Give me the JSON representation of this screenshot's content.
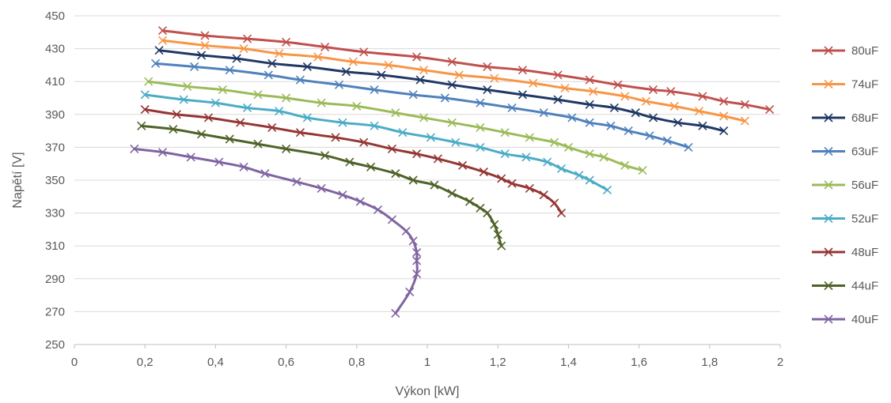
{
  "chart_data": {
    "type": "scatter",
    "title": "",
    "xlabel": "Výkon [kW]",
    "ylabel": "Napětí [V]",
    "xlim": [
      0,
      2
    ],
    "ylim": [
      250,
      450
    ],
    "x_ticks": [
      0,
      0.2,
      0.4,
      0.6,
      0.8,
      1,
      1.2,
      1.4,
      1.6,
      1.8,
      2
    ],
    "y_ticks": [
      250,
      270,
      290,
      310,
      330,
      350,
      370,
      390,
      410,
      430,
      450
    ],
    "x_tick_labels": [
      "0",
      "0,2",
      "0,4",
      "0,6",
      "0,8",
      "1",
      "1,2",
      "1,4",
      "1,6",
      "1,8",
      "2"
    ],
    "y_tick_labels": [
      "250",
      "270",
      "290",
      "310",
      "330",
      "350",
      "370",
      "390",
      "410",
      "430",
      "450"
    ],
    "grid": "horizontal",
    "legend_position": "right",
    "marker": "x",
    "series": [
      {
        "name": "80uF",
        "color": "#C0504D",
        "points": [
          [
            0.25,
            441
          ],
          [
            0.37,
            438
          ],
          [
            0.49,
            436
          ],
          [
            0.6,
            434
          ],
          [
            0.71,
            431
          ],
          [
            0.82,
            428
          ],
          [
            0.97,
            425
          ],
          [
            1.07,
            422
          ],
          [
            1.17,
            419
          ],
          [
            1.27,
            417
          ],
          [
            1.37,
            414
          ],
          [
            1.46,
            411
          ],
          [
            1.54,
            408
          ],
          [
            1.64,
            405
          ],
          [
            1.69,
            404
          ],
          [
            1.78,
            401
          ],
          [
            1.84,
            398
          ],
          [
            1.9,
            396
          ],
          [
            1.97,
            393
          ]
        ]
      },
      {
        "name": "74uF",
        "color": "#F79646",
        "points": [
          [
            0.25,
            435
          ],
          [
            0.37,
            432
          ],
          [
            0.48,
            430
          ],
          [
            0.58,
            427
          ],
          [
            0.69,
            425
          ],
          [
            0.79,
            422
          ],
          [
            0.89,
            420
          ],
          [
            0.99,
            417
          ],
          [
            1.09,
            414
          ],
          [
            1.19,
            412
          ],
          [
            1.3,
            409
          ],
          [
            1.39,
            406
          ],
          [
            1.47,
            404
          ],
          [
            1.56,
            401
          ],
          [
            1.62,
            398
          ],
          [
            1.7,
            395
          ],
          [
            1.77,
            392
          ],
          [
            1.84,
            389
          ],
          [
            1.9,
            386
          ]
        ]
      },
      {
        "name": "68uF",
        "color": "#1F3864",
        "points": [
          [
            0.24,
            429
          ],
          [
            0.36,
            426
          ],
          [
            0.46,
            424
          ],
          [
            0.56,
            421
          ],
          [
            0.66,
            419
          ],
          [
            0.77,
            416
          ],
          [
            0.87,
            414
          ],
          [
            0.98,
            411
          ],
          [
            1.07,
            408
          ],
          [
            1.17,
            405
          ],
          [
            1.27,
            402
          ],
          [
            1.37,
            399
          ],
          [
            1.46,
            396
          ],
          [
            1.53,
            394
          ],
          [
            1.59,
            391
          ],
          [
            1.64,
            388
          ],
          [
            1.71,
            385
          ],
          [
            1.78,
            383
          ],
          [
            1.84,
            380
          ]
        ]
      },
      {
        "name": "63uF",
        "color": "#4F81BD",
        "points": [
          [
            0.23,
            421
          ],
          [
            0.34,
            419
          ],
          [
            0.44,
            417
          ],
          [
            0.55,
            414
          ],
          [
            0.64,
            411
          ],
          [
            0.75,
            408
          ],
          [
            0.85,
            405
          ],
          [
            0.96,
            402
          ],
          [
            1.05,
            400
          ],
          [
            1.15,
            397
          ],
          [
            1.24,
            394
          ],
          [
            1.33,
            391
          ],
          [
            1.41,
            388
          ],
          [
            1.46,
            385
          ],
          [
            1.52,
            383
          ],
          [
            1.57,
            380
          ],
          [
            1.63,
            377
          ],
          [
            1.68,
            374
          ],
          [
            1.74,
            370
          ]
        ]
      },
      {
        "name": "56uF",
        "color": "#9BBB59",
        "points": [
          [
            0.21,
            410
          ],
          [
            0.32,
            407
          ],
          [
            0.42,
            405
          ],
          [
            0.52,
            402
          ],
          [
            0.6,
            400
          ],
          [
            0.7,
            397
          ],
          [
            0.8,
            395
          ],
          [
            0.91,
            391
          ],
          [
            0.99,
            388
          ],
          [
            1.07,
            385
          ],
          [
            1.15,
            382
          ],
          [
            1.22,
            379
          ],
          [
            1.29,
            376
          ],
          [
            1.36,
            373
          ],
          [
            1.4,
            370
          ],
          [
            1.46,
            366
          ],
          [
            1.5,
            364
          ],
          [
            1.56,
            359
          ],
          [
            1.61,
            356
          ]
        ]
      },
      {
        "name": "52uF",
        "color": "#4BACC6",
        "points": [
          [
            0.2,
            402
          ],
          [
            0.31,
            399
          ],
          [
            0.4,
            397
          ],
          [
            0.49,
            394
          ],
          [
            0.58,
            392
          ],
          [
            0.66,
            388
          ],
          [
            0.76,
            385
          ],
          [
            0.85,
            383
          ],
          [
            0.93,
            379
          ],
          [
            1.01,
            376
          ],
          [
            1.08,
            373
          ],
          [
            1.15,
            370
          ],
          [
            1.22,
            366
          ],
          [
            1.28,
            364
          ],
          [
            1.34,
            361
          ],
          [
            1.38,
            357
          ],
          [
            1.43,
            353
          ],
          [
            1.46,
            350
          ],
          [
            1.51,
            344
          ]
        ]
      },
      {
        "name": "48uF",
        "color": "#943634",
        "points": [
          [
            0.2,
            393
          ],
          [
            0.29,
            390
          ],
          [
            0.38,
            388
          ],
          [
            0.47,
            385
          ],
          [
            0.56,
            382
          ],
          [
            0.64,
            379
          ],
          [
            0.74,
            376
          ],
          [
            0.82,
            373
          ],
          [
            0.9,
            369
          ],
          [
            0.97,
            366
          ],
          [
            1.03,
            363
          ],
          [
            1.1,
            359
          ],
          [
            1.16,
            355
          ],
          [
            1.21,
            351
          ],
          [
            1.24,
            348
          ],
          [
            1.29,
            345
          ],
          [
            1.33,
            341
          ],
          [
            1.36,
            336
          ],
          [
            1.38,
            330
          ]
        ]
      },
      {
        "name": "44uF",
        "color": "#4F6228",
        "points": [
          [
            0.19,
            383
          ],
          [
            0.28,
            381
          ],
          [
            0.36,
            378
          ],
          [
            0.44,
            375
          ],
          [
            0.52,
            372
          ],
          [
            0.6,
            369
          ],
          [
            0.71,
            365
          ],
          [
            0.78,
            361
          ],
          [
            0.84,
            358
          ],
          [
            0.91,
            354
          ],
          [
            0.96,
            350
          ],
          [
            1.02,
            347
          ],
          [
            1.07,
            342
          ],
          [
            1.12,
            337
          ],
          [
            1.15,
            333
          ],
          [
            1.17,
            330
          ],
          [
            1.19,
            323
          ],
          [
            1.2,
            317
          ],
          [
            1.21,
            310
          ]
        ]
      },
      {
        "name": "40uF",
        "color": "#8064A2",
        "points": [
          [
            0.17,
            369
          ],
          [
            0.25,
            367
          ],
          [
            0.33,
            364
          ],
          [
            0.41,
            361
          ],
          [
            0.48,
            358
          ],
          [
            0.54,
            354
          ],
          [
            0.63,
            349
          ],
          [
            0.7,
            345
          ],
          [
            0.76,
            341
          ],
          [
            0.81,
            337
          ],
          [
            0.86,
            332
          ],
          [
            0.9,
            326
          ],
          [
            0.94,
            319
          ],
          [
            0.96,
            313
          ],
          [
            0.97,
            306
          ],
          [
            0.97,
            301
          ],
          [
            0.97,
            293
          ],
          [
            0.95,
            282
          ],
          [
            0.91,
            269
          ]
        ]
      }
    ]
  }
}
